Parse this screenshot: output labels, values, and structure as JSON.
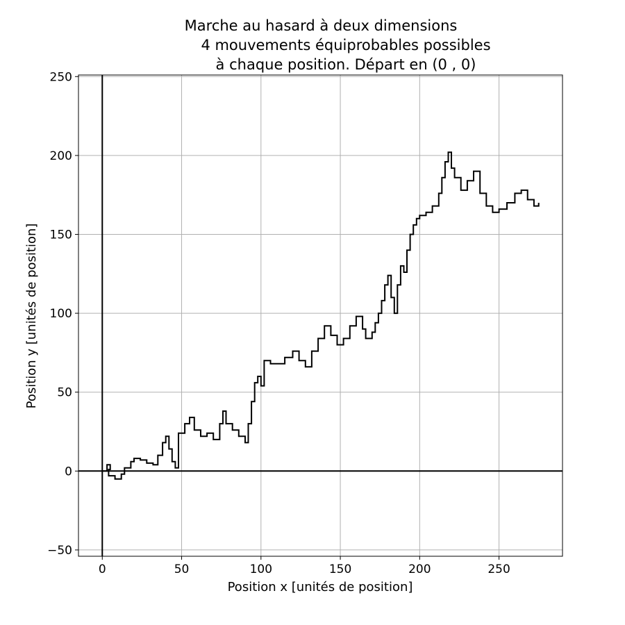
{
  "chart_data": {
    "type": "line",
    "title_lines": [
      "Marche au hasard à deux dimensions",
      "4 mouvements équiprobables possibles",
      "à chaque position. Départ en (0 , 0)"
    ],
    "xlabel": "Position x [unités de position]",
    "ylabel": "Position y [unités de position]",
    "xlim": [
      -15,
      290
    ],
    "ylim": [
      -54,
      251
    ],
    "x_ticks": [
      0,
      50,
      100,
      150,
      200,
      250
    ],
    "x_tick_labels": [
      "0",
      "50",
      "100",
      "150",
      "200",
      "250"
    ],
    "y_ticks": [
      -50,
      0,
      50,
      100,
      150,
      200,
      250
    ],
    "y_tick_labels": [
      "−50",
      "0",
      "50",
      "100",
      "150",
      "200",
      "250"
    ],
    "grid": true,
    "reference_lines": {
      "x": 0,
      "y": 0
    },
    "line_color": "#000000",
    "start": [
      0,
      0
    ],
    "series": [
      {
        "path_x": [
          0,
          3,
          5,
          4,
          8,
          12,
          14,
          18,
          20,
          24,
          28,
          32,
          35,
          38,
          40,
          42,
          44,
          46,
          48,
          52,
          55,
          58,
          62,
          66,
          70,
          74,
          76,
          78,
          82,
          86,
          90,
          92,
          94,
          96,
          98,
          100,
          102,
          106,
          110,
          115,
          120,
          124,
          128,
          132,
          136,
          140,
          144,
          148,
          152,
          156,
          160,
          164,
          166,
          170,
          172,
          174,
          176,
          178,
          180,
          182,
          184,
          186,
          188,
          190,
          192,
          194,
          196,
          198,
          200,
          204,
          208,
          212,
          214,
          216,
          218,
          220,
          222,
          226,
          230,
          234,
          238,
          242,
          246,
          250,
          255,
          260,
          264,
          268,
          272,
          275
        ],
        "path_y": [
          0,
          4,
          1,
          -3,
          -5,
          -2,
          2,
          6,
          8,
          7,
          5,
          4,
          10,
          18,
          22,
          14,
          6,
          2,
          24,
          30,
          34,
          26,
          22,
          24,
          20,
          30,
          38,
          30,
          26,
          22,
          18,
          30,
          44,
          56,
          60,
          54,
          70,
          68,
          68,
          72,
          76,
          70,
          66,
          76,
          84,
          92,
          86,
          80,
          84,
          92,
          98,
          90,
          84,
          88,
          94,
          100,
          108,
          118,
          124,
          110,
          100,
          118,
          130,
          126,
          140,
          150,
          156,
          160,
          162,
          164,
          168,
          176,
          186,
          196,
          202,
          192,
          186,
          178,
          184,
          190,
          176,
          168,
          164,
          166,
          170,
          176,
          178,
          172,
          168,
          170
        ]
      }
    ]
  }
}
